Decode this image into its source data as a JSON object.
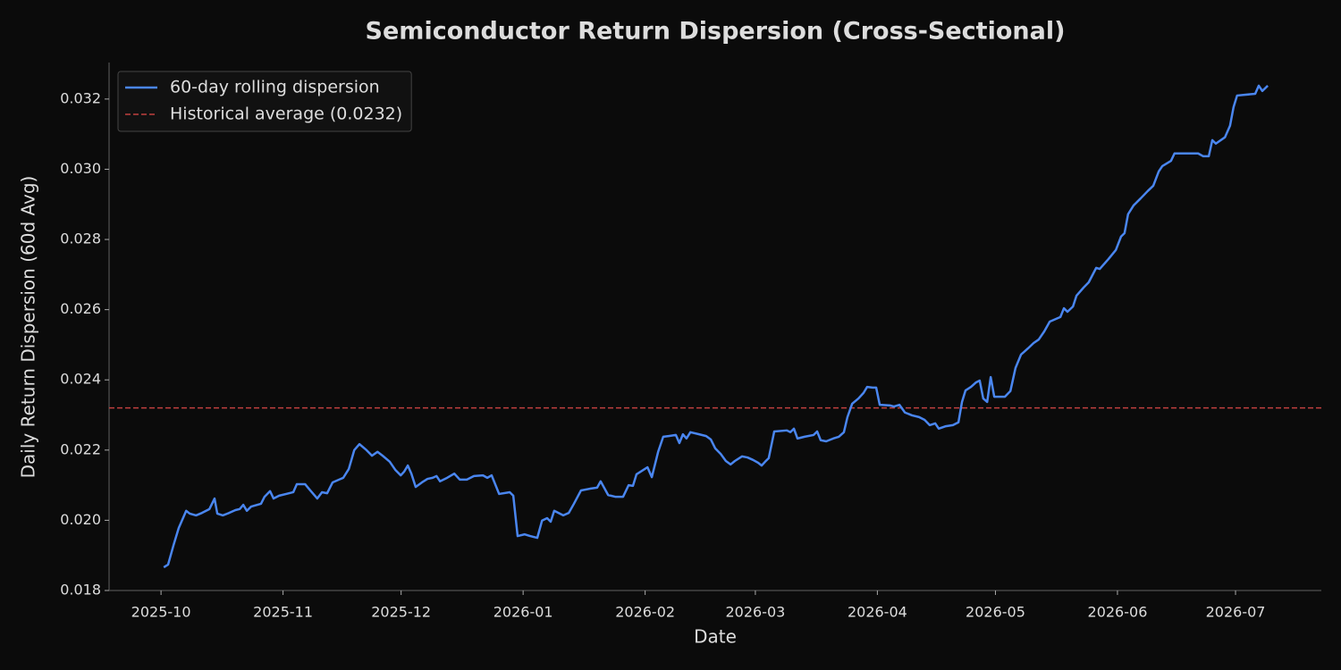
{
  "chart_data": {
    "type": "line",
    "title": "Semiconductor Return Dispersion (Cross-Sectional)",
    "x_label": "Date",
    "y_label": "Daily Return Dispersion (60d Avg)",
    "x": [
      0.7,
      1.8,
      3.2,
      4.5,
      6.4,
      7.3,
      8.9,
      10.4,
      12.3,
      13.6,
      14.3,
      15.7,
      17.3,
      18.9,
      20.0,
      20.9,
      21.8,
      22.9,
      25.4,
      26.3,
      27.7,
      28.6,
      30.0,
      31.8,
      33.6,
      34.5,
      36.6,
      37.7,
      39.7,
      40.9,
      42.2,
      43.6,
      46.3,
      47.7,
      49.1,
      50.4,
      52.2,
      53.6,
      55.0,
      56.3,
      58.1,
      59.5,
      60.9,
      61.8,
      62.7,
      63.6,
      64.7,
      66.3,
      67.7,
      69.0,
      70.0,
      70.9,
      72.7,
      74.5,
      75.9,
      77.7,
      79.5,
      81.8,
      82.9,
      84.0,
      85.9,
      88.6,
      89.5,
      90.6,
      92.4,
      93.8,
      95.6,
      96.8,
      98.1,
      99.0,
      99.9,
      102.2,
      103.6,
      104.9,
      106.7,
      109.0,
      110.8,
      111.7,
      113.6,
      115.4,
      117.4,
      118.8,
      119.9,
      120.8,
      123.6,
      124.7,
      126.3,
      127.6,
      129.0,
      130.8,
      131.7,
      132.6,
      133.5,
      134.5,
      136.7,
      138.5,
      139.7,
      140.8,
      142.2,
      143.5,
      144.7,
      145.8,
      147.6,
      149.0,
      150.4,
      151.7,
      152.6,
      153.5,
      154.4,
      155.8,
      159.0,
      159.9,
      160.8,
      161.7,
      163.5,
      165.8,
      166.7,
      167.6,
      169.0,
      170.8,
      172.2,
      173.5,
      174.4,
      175.6,
      177.2,
      178.5,
      179.4,
      180.8,
      181.7,
      182.6,
      185.3,
      186.2,
      187.6,
      189.0,
      190.8,
      192.6,
      194.0,
      195.3,
      196.7,
      197.6,
      199.4,
      201.2,
      202.6,
      203.5,
      204.4,
      205.8,
      207.1,
      208.0,
      208.9,
      209.9,
      210.8,
      211.7,
      214.4,
      215.8,
      217.1,
      218.5,
      220.3,
      221.7,
      223.0,
      224.4,
      225.8,
      228.5,
      229.4,
      230.3,
      231.7,
      232.6,
      234.4,
      235.7,
      237.6,
      238.5,
      240.7,
      242.6,
      243.9,
      244.8,
      245.7,
      247.1,
      248.9,
      250.7,
      252.1,
      253.5,
      254.4,
      256.6,
      257.5,
      261.2,
      263.5,
      264.8,
      266.2,
      267.1,
      268.0,
      270.3,
      271.6,
      272.5,
      273.4,
      278.0,
      278.9,
      279.8,
      281.2
    ],
    "series": [
      {
        "name": "60-day rolling dispersion",
        "color": "#4a86f0",
        "values": [
          0.01866,
          0.01874,
          0.0193,
          0.01978,
          0.02027,
          0.02019,
          0.02014,
          0.02021,
          0.02032,
          0.02062,
          0.02019,
          0.02014,
          0.02021,
          0.02029,
          0.02032,
          0.02044,
          0.02027,
          0.02039,
          0.02047,
          0.02067,
          0.02083,
          0.02062,
          0.0207,
          0.02075,
          0.0208,
          0.02103,
          0.02103,
          0.02088,
          0.02062,
          0.0208,
          0.02077,
          0.02108,
          0.02121,
          0.02146,
          0.022,
          0.02217,
          0.022,
          0.02184,
          0.02195,
          0.02184,
          0.02167,
          0.02144,
          0.02128,
          0.02139,
          0.02156,
          0.02133,
          0.02095,
          0.02108,
          0.02118,
          0.02121,
          0.02126,
          0.02111,
          0.02121,
          0.02133,
          0.02116,
          0.02116,
          0.02126,
          0.02128,
          0.02121,
          0.02128,
          0.02075,
          0.0208,
          0.0207,
          0.01955,
          0.0196,
          0.01955,
          0.0195,
          0.01999,
          0.02006,
          0.01996,
          0.02027,
          0.02014,
          0.02021,
          0.02047,
          0.02085,
          0.0209,
          0.02093,
          0.02111,
          0.02072,
          0.02067,
          0.02067,
          0.021,
          0.02098,
          0.02131,
          0.02151,
          0.02123,
          0.02195,
          0.02238,
          0.0224,
          0.02243,
          0.0222,
          0.02245,
          0.02233,
          0.02251,
          0.02245,
          0.0224,
          0.0223,
          0.02205,
          0.02189,
          0.02169,
          0.02159,
          0.02169,
          0.02182,
          0.02179,
          0.02172,
          0.02164,
          0.02156,
          0.02167,
          0.02177,
          0.02253,
          0.02256,
          0.02251,
          0.02261,
          0.02233,
          0.02238,
          0.02243,
          0.02253,
          0.02228,
          0.02225,
          0.02233,
          0.02238,
          0.02251,
          0.02294,
          0.02332,
          0.02347,
          0.02363,
          0.0238,
          0.02378,
          0.02378,
          0.02329,
          0.02327,
          0.02324,
          0.02329,
          0.02307,
          0.02299,
          0.02294,
          0.02286,
          0.02271,
          0.02276,
          0.02261,
          0.02268,
          0.02271,
          0.02279,
          0.02337,
          0.0237,
          0.0238,
          0.02393,
          0.02398,
          0.02347,
          0.02337,
          0.02408,
          0.02352,
          0.02352,
          0.02368,
          0.02434,
          0.02472,
          0.0249,
          0.02505,
          0.02515,
          0.02538,
          0.02566,
          0.02579,
          0.02604,
          0.02594,
          0.02609,
          0.0264,
          0.02663,
          0.02678,
          0.02719,
          0.02716,
          0.02744,
          0.0277,
          0.02808,
          0.02818,
          0.02872,
          0.02897,
          0.02917,
          0.02938,
          0.02953,
          0.02994,
          0.03009,
          0.03024,
          0.03045,
          0.03045,
          0.03045,
          0.03037,
          0.03037,
          0.03083,
          0.03073,
          0.03091,
          0.03124,
          0.03177,
          0.0321,
          0.03215,
          0.03238,
          0.03223,
          0.03238
        ]
      }
    ],
    "reference_lines": [
      {
        "name": "Historical average (0.0232)",
        "value": 0.0232,
        "color": "#c0403f",
        "style": "dashed"
      }
    ],
    "xlim": [
      -13.2,
      294.8
    ],
    "xticks": [
      {
        "value": 0,
        "label": "2025-10"
      },
      {
        "value": 31,
        "label": "2025-11"
      },
      {
        "value": 61,
        "label": "2025-12"
      },
      {
        "value": 92,
        "label": "2026-01"
      },
      {
        "value": 123,
        "label": "2026-02"
      },
      {
        "value": 151,
        "label": "2026-03"
      },
      {
        "value": 182,
        "label": "2026-04"
      },
      {
        "value": 212,
        "label": "2026-05"
      },
      {
        "value": 243,
        "label": "2026-06"
      },
      {
        "value": 273,
        "label": "2026-07"
      }
    ],
    "ylim": [
      0.018,
      0.03304
    ],
    "yticks": [
      0.018,
      {
        "value": 0.02,
        "label": "0.020"
      },
      0.022,
      0.024,
      0.026,
      0.028,
      {
        "value": 0.03,
        "label": "0.030"
      },
      0.032
    ],
    "legend": "upper left",
    "grid": false
  }
}
